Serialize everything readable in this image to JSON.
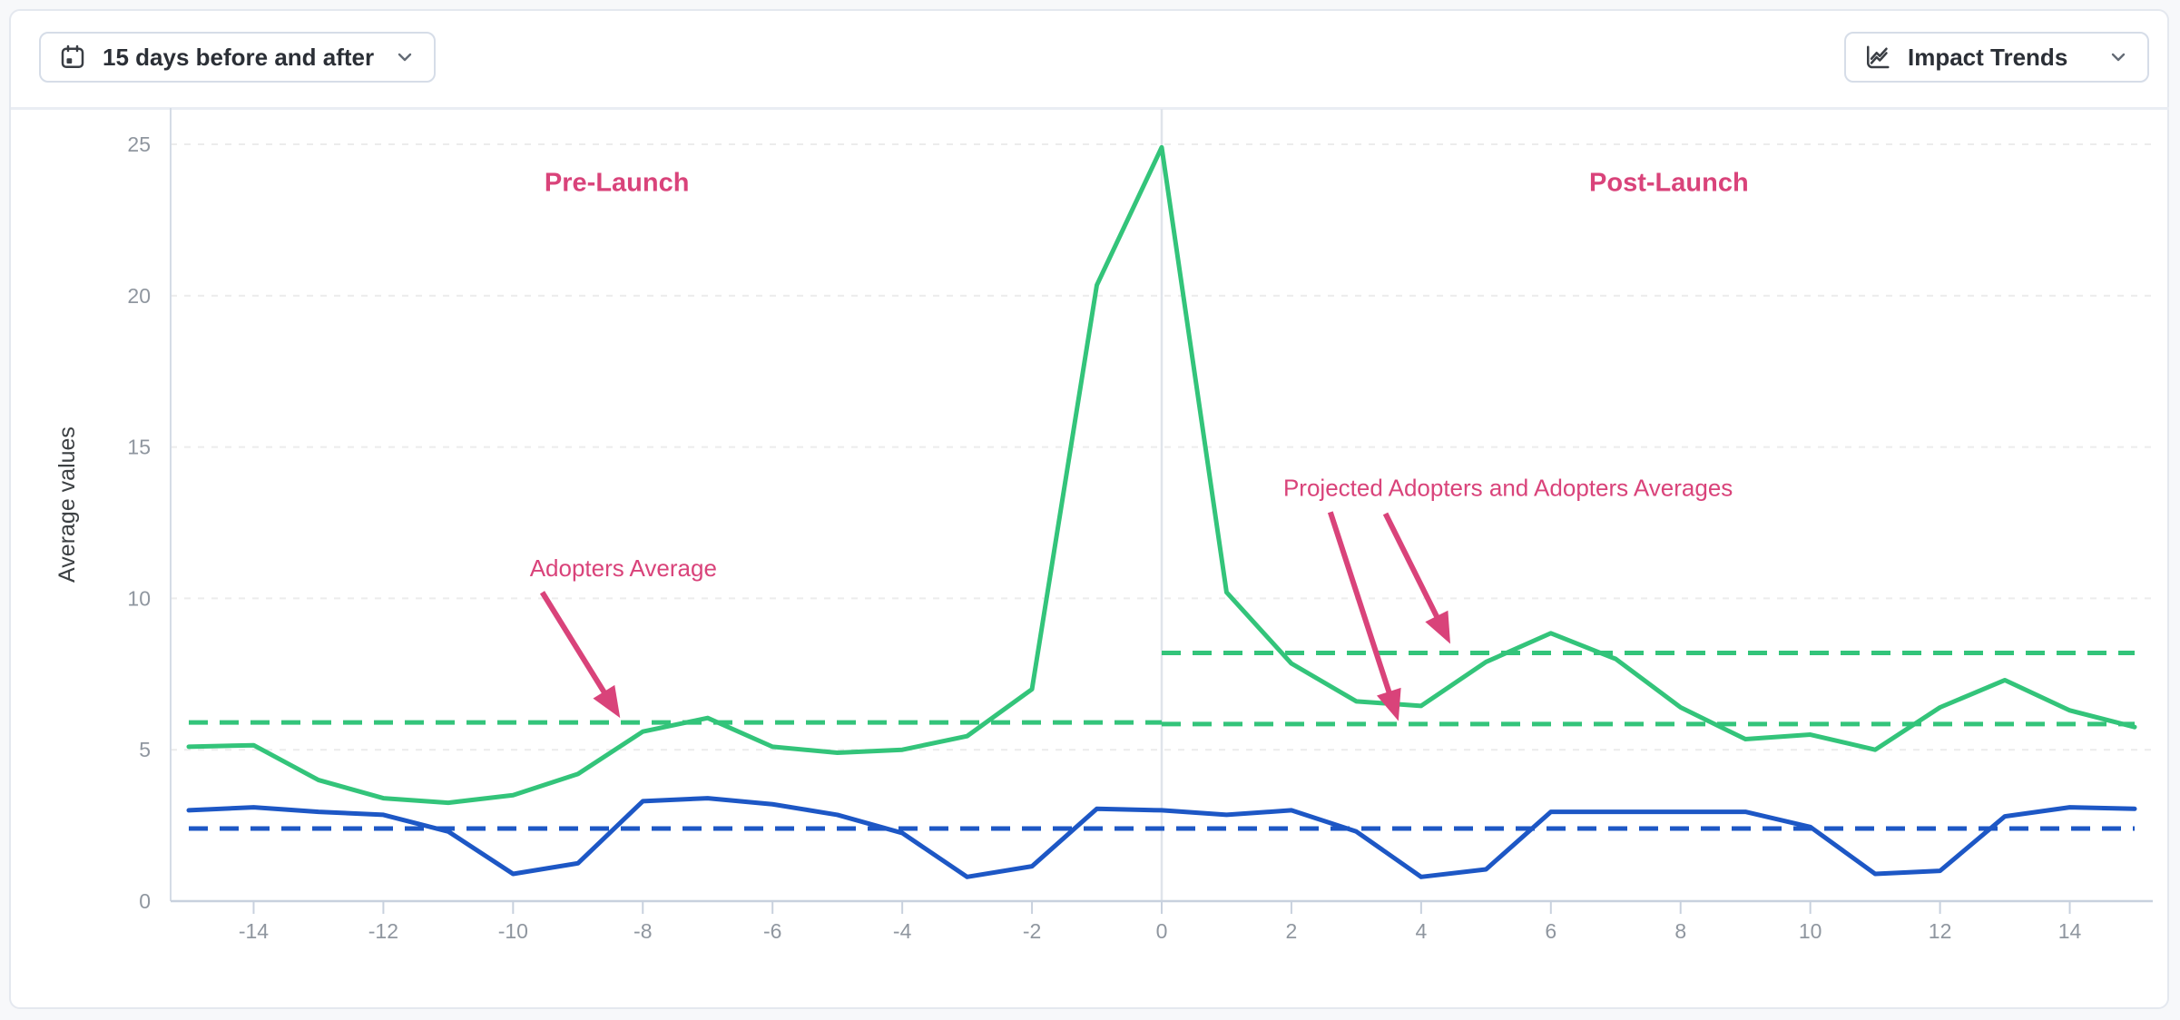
{
  "toolbar": {
    "date_range_button": {
      "label": "15 days before and after",
      "icon": "calendar-icon"
    },
    "trends_button": {
      "label": "Impact Trends",
      "icon": "line-chart-icon"
    }
  },
  "chart_data": {
    "type": "line",
    "title": "",
    "xlabel": "",
    "ylabel": "Average values",
    "xlim": [
      -15,
      15
    ],
    "ylim": [
      0,
      26.2
    ],
    "grid": true,
    "legend": "none",
    "x_ticks": [
      -14,
      -12,
      -10,
      -8,
      -6,
      -4,
      -2,
      0,
      2,
      4,
      6,
      8,
      10,
      12,
      14
    ],
    "y_ticks": [
      0,
      5,
      10,
      15,
      20,
      25
    ],
    "grid_y": [
      5,
      10,
      15,
      20,
      25
    ],
    "launch_divider_x": 0,
    "x": [
      -15,
      -14,
      -13,
      -12,
      -11,
      -10,
      -9,
      -8,
      -7,
      -6,
      -5,
      -4,
      -3,
      -2,
      -1,
      0,
      1,
      2,
      3,
      4,
      5,
      6,
      7,
      8,
      9,
      10,
      11,
      12,
      13,
      14,
      15
    ],
    "series": [
      {
        "id": "adopters",
        "color": "#33c47a",
        "style": "solid",
        "values": [
          5.1,
          5.15,
          4.0,
          3.4,
          3.25,
          3.5,
          4.2,
          5.6,
          6.05,
          5.1,
          4.9,
          5.0,
          5.45,
          7.0,
          20.35,
          24.9,
          10.2,
          7.85,
          6.6,
          6.45,
          7.9,
          8.85,
          8.0,
          6.4,
          5.35,
          5.5,
          5.0,
          6.4,
          7.3,
          6.3,
          5.75
        ]
      },
      {
        "id": "comparison",
        "color": "#1d57c5",
        "style": "solid",
        "values": [
          3.0,
          3.1,
          2.95,
          2.85,
          2.3,
          0.9,
          1.25,
          3.3,
          3.4,
          3.2,
          2.85,
          2.25,
          0.8,
          1.15,
          3.05,
          3.0,
          2.85,
          3.0,
          2.3,
          0.8,
          1.05,
          2.95,
          2.95,
          2.95,
          2.95,
          2.45,
          0.9,
          1.0,
          2.8,
          3.1,
          3.05
        ]
      }
    ],
    "average_lines": [
      {
        "id": "adopters-average-pre",
        "color": "#33c47a",
        "value": 5.9,
        "x_from": -15,
        "x_to": 0
      },
      {
        "id": "projected-adopters-average-post",
        "color": "#33c47a",
        "value": 5.85,
        "x_from": 0,
        "x_to": 15
      },
      {
        "id": "adopters-average-post",
        "color": "#33c47a",
        "value": 8.2,
        "x_from": 0,
        "x_to": 15
      },
      {
        "id": "comparison-average",
        "color": "#1d57c5",
        "value": 2.4,
        "x_from": -15,
        "x_to": 15
      }
    ],
    "annotations": {
      "color": "#d9437a",
      "phase_labels": [
        {
          "id": "pre-launch",
          "text": "Pre-Launch",
          "x": -8.4,
          "y": 23.75
        },
        {
          "id": "post-launch",
          "text": "Post-Launch",
          "x": 7.82,
          "y": 23.75
        }
      ],
      "callouts": [
        {
          "id": "adopters-average",
          "text": "Adopters Average",
          "x": -8.3,
          "y": 11.0,
          "arrows": [
            {
              "x1": -9.55,
              "y1": 10.2,
              "x2": -8.35,
              "y2": 6.05
            }
          ]
        },
        {
          "id": "projected-adopters-and-adopters-averages",
          "text": "Projected Adopters and Adopters Averages",
          "x": 5.34,
          "y": 13.65,
          "arrows": [
            {
              "x1": 2.6,
              "y1": 12.85,
              "x2": 3.65,
              "y2": 5.95
            },
            {
              "x1": 3.45,
              "y1": 12.8,
              "x2": 4.45,
              "y2": 8.5
            }
          ]
        }
      ]
    }
  }
}
